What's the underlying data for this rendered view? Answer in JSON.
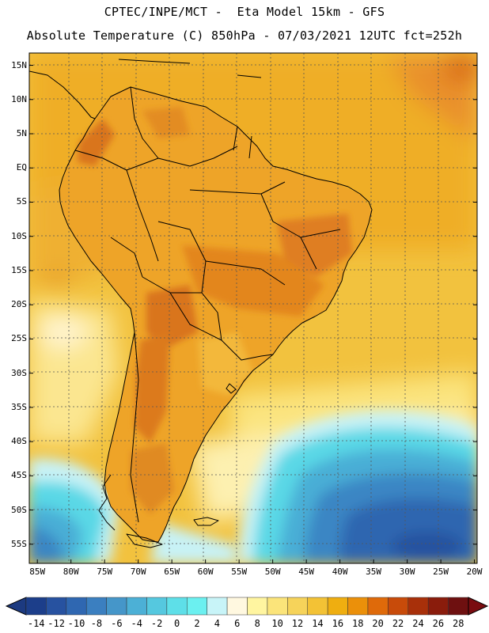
{
  "header": {
    "line1": "CPTEC/INPE/MCT -  Eta Model 15km - GFS",
    "line2": "Absolute Temperature (C) 850hPa - 07/03/2021 12UTC fct=252h"
  },
  "map": {
    "lat_labels": [
      "15N",
      "10N",
      "5N",
      "EQ",
      "5S",
      "10S",
      "15S",
      "20S",
      "25S",
      "30S",
      "35S",
      "40S",
      "45S",
      "50S",
      "55S"
    ],
    "lon_labels": [
      "85W",
      "80W",
      "75W",
      "70W",
      "65W",
      "60W",
      "55W",
      "50W",
      "45W",
      "40W",
      "35W",
      "30W",
      "25W",
      "20W"
    ],
    "lat_values": [
      15,
      10,
      5,
      0,
      -5,
      -10,
      -15,
      -20,
      -25,
      -30,
      -35,
      -40,
      -45,
      -50,
      -55
    ],
    "lon_values": [
      -85,
      -80,
      -75,
      -70,
      -65,
      -60,
      -55,
      -50,
      -45,
      -40,
      -35,
      -30,
      -25,
      -20
    ]
  },
  "colorbar": {
    "labels": [
      "-14",
      "-12",
      "-10",
      "-8",
      "-6",
      "-4",
      "-2",
      "0",
      "2",
      "4",
      "6",
      "8",
      "10",
      "12",
      "14",
      "16",
      "18",
      "20",
      "22",
      "24",
      "26",
      "28"
    ],
    "colors": [
      "#1c3e8a",
      "#2752a0",
      "#2f67b1",
      "#3b7fc0",
      "#4596c9",
      "#4cb0d6",
      "#55c8df",
      "#5edfe8",
      "#6bf0f0",
      "#c8f4f8",
      "#fff8e0",
      "#fff5a0",
      "#fbe47a",
      "#f6d35a",
      "#f3c235",
      "#efae10",
      "#eb900a",
      "#df6a0a",
      "#c84b0a",
      "#a8300a",
      "#8a1c0c",
      "#6e1010"
    ],
    "under_color": "#1c3a80",
    "over_color": "#7a0c10"
  },
  "colors": {
    "ocean_warm": "#f2c23e",
    "ocean_cool_light": "#fbe27a",
    "land_base": "#eea428",
    "land_hot": "#d9751c",
    "cold_core": "#2f66b0",
    "cyan_ring": "#5ad8e6",
    "border": "#000000",
    "grid": "#555555"
  }
}
